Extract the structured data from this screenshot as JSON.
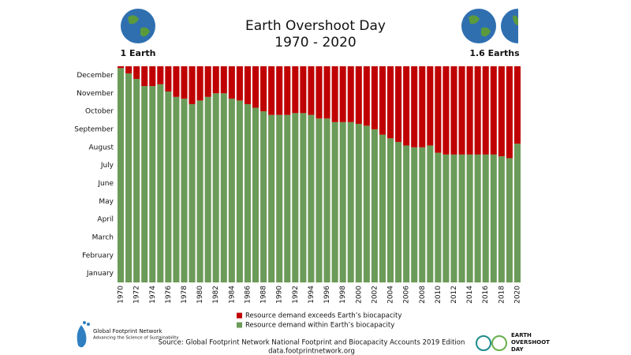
{
  "chart_data": {
    "type": "stacked-bar",
    "title": "Earth Overshoot Day",
    "subtitle": "1970 - 2020",
    "left_label": "1 Earth",
    "right_label": "1.6 Earths",
    "categories": [
      "1970",
      null,
      "1972",
      null,
      "1974",
      null,
      "1976",
      null,
      "1978",
      null,
      "1980",
      null,
      "1982",
      null,
      "1984",
      null,
      "1986",
      null,
      "1988",
      null,
      "1990",
      null,
      "1992",
      null,
      "1994",
      null,
      "1996",
      null,
      "1998",
      null,
      "2000",
      null,
      "2002",
      null,
      "2004",
      null,
      "2006",
      null,
      "2008",
      null,
      "2010",
      null,
      "2012",
      null,
      "2014",
      null,
      "2016",
      null,
      "2018",
      null,
      "2020"
    ],
    "ylim": [
      0,
      12
    ],
    "yticks": [
      {
        "value": 0.5,
        "label": "January"
      },
      {
        "value": 1.5,
        "label": "February"
      },
      {
        "value": 2.5,
        "label": "March"
      },
      {
        "value": 3.5,
        "label": "April"
      },
      {
        "value": 4.5,
        "label": "May"
      },
      {
        "value": 5.5,
        "label": "June"
      },
      {
        "value": 6.5,
        "label": "July"
      },
      {
        "value": 7.5,
        "label": "August"
      },
      {
        "value": 8.5,
        "label": "September"
      },
      {
        "value": 9.5,
        "label": "October"
      },
      {
        "value": 10.5,
        "label": "November"
      },
      {
        "value": 11.5,
        "label": "December"
      }
    ],
    "series": [
      {
        "name": "Resource demand within Earth’s biocapacity",
        "color": "#6b9b58",
        "values": [
          11.9,
          11.6,
          11.3,
          10.9,
          10.9,
          11.0,
          10.6,
          10.3,
          10.2,
          9.9,
          10.1,
          10.3,
          10.5,
          10.5,
          10.2,
          10.1,
          9.9,
          9.7,
          9.5,
          9.3,
          9.3,
          9.3,
          9.4,
          9.4,
          9.3,
          9.1,
          9.1,
          8.9,
          8.9,
          8.9,
          8.8,
          8.7,
          8.5,
          8.2,
          8.0,
          7.8,
          7.6,
          7.5,
          7.5,
          7.6,
          7.2,
          7.1,
          7.1,
          7.1,
          7.1,
          7.1,
          7.1,
          7.1,
          7.0,
          6.9,
          7.7
        ]
      },
      {
        "name": "Resource demand exceeds Earth’s biocapacity",
        "color": "#c00000",
        "values": [
          0.1,
          0.4,
          0.7,
          1.1,
          1.1,
          1.0,
          1.4,
          1.7,
          1.8,
          2.1,
          1.9,
          1.7,
          1.5,
          1.5,
          1.8,
          1.9,
          2.1,
          2.3,
          2.5,
          2.7,
          2.7,
          2.7,
          2.6,
          2.6,
          2.7,
          2.9,
          2.9,
          3.1,
          3.1,
          3.1,
          3.2,
          3.3,
          3.5,
          3.8,
          4.0,
          4.2,
          4.4,
          4.5,
          4.5,
          4.4,
          4.8,
          4.9,
          4.9,
          4.9,
          4.9,
          4.9,
          4.9,
          4.9,
          5.0,
          5.1,
          4.3
        ]
      }
    ]
  },
  "footer": {
    "source": "Source: Global Footprint Network National Footprint and Biocapacity Accounts 2019 Edition",
    "url": "data.footprintnetwork.org",
    "logo_left": "Global Footprint Network",
    "logo_left_tagline": "Advancing the Science of Sustainability",
    "logo_right": [
      "EARTH",
      "OVERSHOOT",
      "DAY"
    ]
  }
}
